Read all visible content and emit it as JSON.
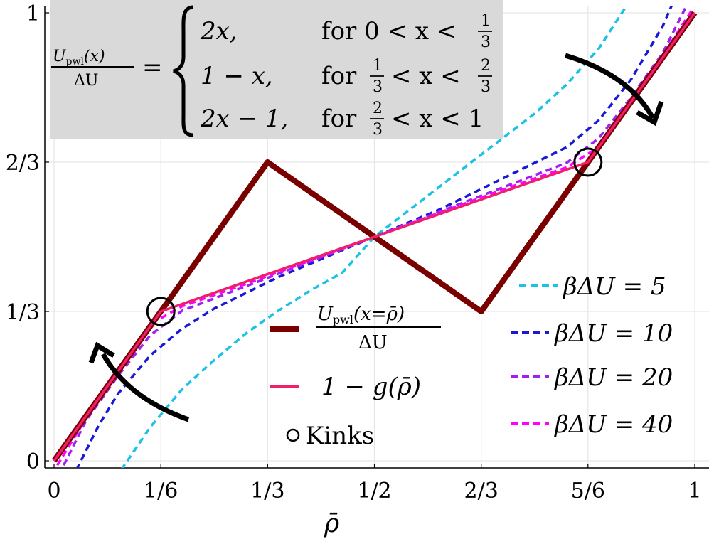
{
  "chart_data": {
    "type": "line",
    "xlabel": "ρ̄",
    "ylabel": "",
    "xlim": [
      0,
      1
    ],
    "ylim": [
      0,
      1
    ],
    "grid": true,
    "x_ticks": [
      {
        "value": 0,
        "label": "0"
      },
      {
        "value": 0.1667,
        "label": "1/6"
      },
      {
        "value": 0.3333,
        "label": "1/3"
      },
      {
        "value": 0.5,
        "label": "1/2"
      },
      {
        "value": 0.6667,
        "label": "2/3"
      },
      {
        "value": 0.8333,
        "label": "5/6"
      },
      {
        "value": 1,
        "label": "1"
      }
    ],
    "y_ticks": [
      {
        "value": 0,
        "label": "0"
      },
      {
        "value": 0.3333,
        "label": "1/3"
      },
      {
        "value": 0.6667,
        "label": "2/3"
      },
      {
        "value": 1,
        "label": "1"
      }
    ],
    "formula_box": {
      "lhs_num": "U",
      "lhs_num_sub": "pwl",
      "lhs_num_arg": "(x)",
      "lhs_den": "ΔU",
      "eq": "=",
      "cases": [
        {
          "expr": "2x,",
          "cond_prefix": "for  0 < x <",
          "frac_num": "1",
          "frac_den": "3",
          "cond_suffix": ""
        },
        {
          "expr": "1 − x,",
          "cond_prefix": "for",
          "frac_num": "1",
          "frac_den": "3",
          "mid": "< x <",
          "frac2_num": "2",
          "frac2_den": "3"
        },
        {
          "expr": "2x − 1,",
          "cond_prefix": "for",
          "frac_num": "2",
          "frac_den": "3",
          "mid": "< x < 1"
        }
      ]
    },
    "series": [
      {
        "name": "U_pwl(x=ρ̄)/ΔU",
        "color": "#7a0000",
        "style": "solid-thick",
        "x": [
          0,
          0.3333,
          0.6667,
          1
        ],
        "y": [
          0,
          0.6667,
          0.3333,
          1
        ]
      },
      {
        "name": "1 − g(ρ̄)",
        "color": "#ef1f6a",
        "style": "solid",
        "x": [
          0,
          0.1667,
          0.8333,
          1
        ],
        "y": [
          0,
          0.3333,
          0.6667,
          1
        ]
      },
      {
        "name": "βΔU = 5",
        "color": "#1cc2e6",
        "style": "dashed",
        "x": [
          0.105,
          0.15,
          0.2,
          0.25,
          0.3,
          0.35,
          0.4,
          0.45,
          0.5,
          0.55,
          0.6,
          0.65,
          0.7,
          0.75,
          0.8,
          0.85,
          0.9
        ],
        "y": [
          -0.02,
          0.075,
          0.16,
          0.225,
          0.285,
          0.335,
          0.38,
          0.42,
          0.5,
          0.555,
          0.61,
          0.665,
          0.72,
          0.775,
          0.84,
          0.92,
          1.03
        ]
      },
      {
        "name": "βΔU = 10",
        "color": "#1a1ad6",
        "style": "dashed",
        "x": [
          0.035,
          0.07,
          0.1,
          0.15,
          0.2,
          0.25,
          0.3,
          0.35,
          0.4,
          0.45,
          0.5,
          0.55,
          0.6,
          0.65,
          0.7,
          0.75,
          0.8,
          0.85,
          0.9,
          0.95,
          0.965
        ],
        "y": [
          -0.02,
          0.08,
          0.15,
          0.235,
          0.295,
          0.34,
          0.375,
          0.41,
          0.44,
          0.47,
          0.5,
          0.53,
          0.56,
          0.595,
          0.63,
          0.665,
          0.7,
          0.76,
          0.85,
          0.97,
          1.02
        ]
      },
      {
        "name": "βΔU = 20",
        "color": "#a020f0",
        "style": "dashed",
        "x": [
          0.015,
          0.05,
          0.1,
          0.15,
          0.2,
          0.3,
          0.4,
          0.5,
          0.6,
          0.7,
          0.8,
          0.85,
          0.9,
          0.95,
          0.985
        ],
        "y": [
          -0.01,
          0.09,
          0.19,
          0.28,
          0.335,
          0.39,
          0.445,
          0.5,
          0.555,
          0.61,
          0.665,
          0.72,
          0.81,
          0.91,
          1.01
        ]
      },
      {
        "name": "βΔU = 40",
        "color": "#ff00ff",
        "style": "dashed",
        "x": [
          0.005,
          0.05,
          0.1,
          0.15,
          0.2,
          0.3,
          0.4,
          0.5,
          0.6,
          0.7,
          0.8,
          0.85,
          0.9,
          0.95,
          0.995
        ],
        "y": [
          -0.01,
          0.095,
          0.205,
          0.305,
          0.345,
          0.395,
          0.447,
          0.5,
          0.553,
          0.605,
          0.655,
          0.7,
          0.8,
          0.905,
          1.005
        ]
      }
    ],
    "kinks": [
      {
        "x": 0.1667,
        "y": 0.3333
      },
      {
        "x": 0.8333,
        "y": 0.6667
      }
    ],
    "legend_inner": [
      {
        "label_num": "U",
        "label_sub": "pwl",
        "label_arg": "(x=ρ̄)",
        "label_den": "ΔU",
        "color": "#7a0000",
        "kind": "thick-line"
      },
      {
        "label": "1 − g(ρ̄)",
        "color": "#ef1f6a",
        "kind": "line"
      },
      {
        "label": "Kinks",
        "color": "#000000",
        "kind": "circle"
      }
    ],
    "legend_outer": [
      {
        "label": "βΔU = 5",
        "color": "#1cc2e6"
      },
      {
        "label": "βΔU = 10",
        "color": "#1a1ad6"
      },
      {
        "label": "βΔU = 20",
        "color": "#a020f0"
      },
      {
        "label": "βΔU = 40",
        "color": "#ff00ff"
      }
    ]
  }
}
